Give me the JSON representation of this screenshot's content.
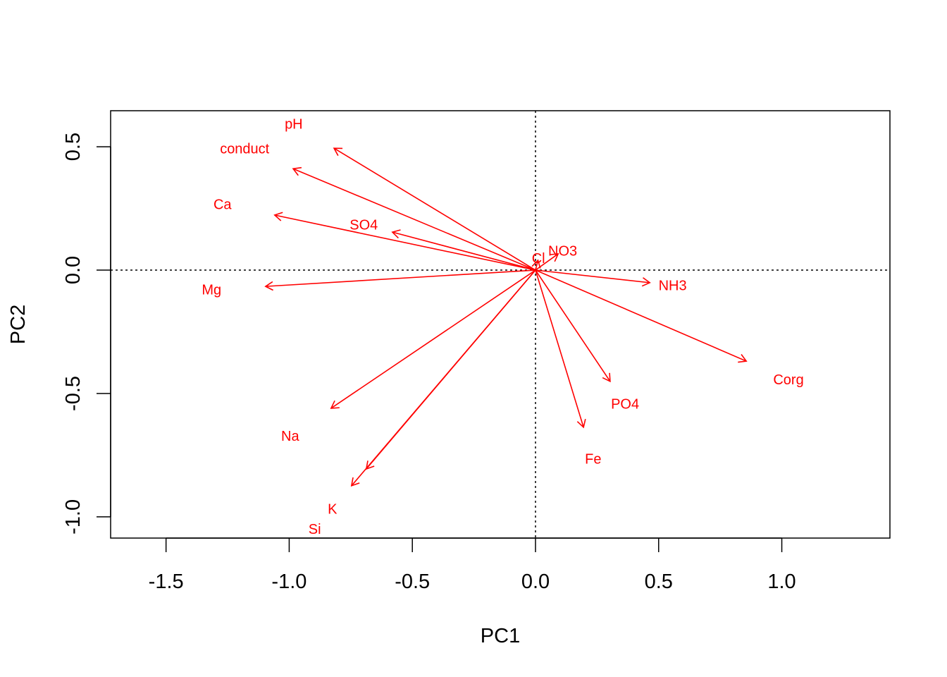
{
  "chart_data": {
    "type": "biplot-loadings",
    "title": "",
    "xlabel": "PC1",
    "ylabel": "PC2",
    "xlim": [
      -1.725,
      1.439
    ],
    "ylim": [
      -1.086,
      0.646
    ],
    "xticks": [
      -1.5,
      -1.0,
      -0.5,
      0.0,
      0.5,
      1.0
    ],
    "xtick_labels": [
      "-1.5",
      "-1.0",
      "-0.5",
      "0.0",
      "0.5",
      "1.0"
    ],
    "yticks": [
      -1.0,
      -0.5,
      0.0,
      0.5
    ],
    "ytick_labels": [
      "-1.0",
      "-0.5",
      "0.0",
      "0.5"
    ],
    "reference_lines": {
      "x": 0,
      "y": 0,
      "style": "dotted"
    },
    "color": "#ff0000",
    "label_scale": 1.2,
    "loadings": [
      {
        "name": "pH",
        "x": -0.818,
        "y": 0.494
      },
      {
        "name": "conduct",
        "x": -0.984,
        "y": 0.411
      },
      {
        "name": "Ca",
        "x": -1.059,
        "y": 0.223
      },
      {
        "name": "SO4",
        "x": -0.581,
        "y": 0.154
      },
      {
        "name": "Mg",
        "x": -1.096,
        "y": -0.066
      },
      {
        "name": "Na",
        "x": -0.83,
        "y": -0.56
      },
      {
        "name": "K",
        "x": -0.687,
        "y": -0.806
      },
      {
        "name": "Si",
        "x": -0.747,
        "y": -0.874
      },
      {
        "name": "NO3",
        "x": 0.092,
        "y": 0.066
      },
      {
        "name": "Cl",
        "x": 0.01,
        "y": 0.04
      },
      {
        "name": "NH3",
        "x": 0.464,
        "y": -0.051
      },
      {
        "name": "Corg",
        "x": 0.856,
        "y": -0.369
      },
      {
        "name": "PO4",
        "x": 0.303,
        "y": -0.451
      },
      {
        "name": "Fe",
        "x": 0.195,
        "y": -0.637
      }
    ]
  }
}
